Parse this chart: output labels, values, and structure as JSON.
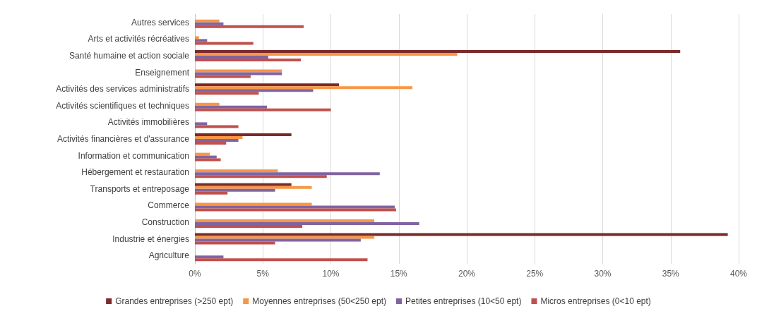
{
  "chart_data": {
    "type": "bar",
    "orientation": "horizontal",
    "categories": [
      "Autres services",
      "Arts et activités récréatives",
      "Santé humaine et action sociale",
      "Enseignement",
      "Activités des services administratifs",
      "Activités scientifiques et techniques",
      "Activités immobilières",
      "Activités financières et d'assurance",
      "Information et communication",
      "Hébergement et restauration",
      "Transports et entreposage",
      "Commerce",
      "Construction",
      "Industrie et énergies",
      "Agriculture"
    ],
    "series": [
      {
        "name": "Grandes entreprises (>250 ept)",
        "color": "#7b2a2a",
        "values": [
          null,
          null,
          35.7,
          null,
          10.6,
          null,
          null,
          7.1,
          null,
          null,
          7.1,
          null,
          null,
          39.2,
          null
        ]
      },
      {
        "name": "Moyennes entreprises (50<250 ept)",
        "color": "#f79646",
        "values": [
          1.8,
          0.3,
          19.3,
          6.4,
          16.0,
          1.8,
          null,
          3.5,
          1.1,
          6.1,
          8.6,
          8.6,
          13.2,
          13.2,
          null
        ]
      },
      {
        "name": "Petites entreprises (10<50 ept)",
        "color": "#8064a2",
        "values": [
          2.1,
          0.9,
          5.4,
          6.4,
          8.7,
          5.3,
          0.9,
          3.2,
          1.6,
          13.6,
          5.9,
          14.7,
          16.5,
          12.2,
          2.1
        ]
      },
      {
        "name": "Micros entreprises (0<10 ept)",
        "color": "#c0504d",
        "values": [
          8.0,
          4.3,
          7.8,
          4.1,
          4.7,
          10.0,
          3.2,
          2.3,
          1.9,
          9.7,
          2.4,
          14.8,
          7.9,
          5.9,
          12.7
        ]
      }
    ],
    "xlim": [
      0,
      40
    ],
    "xticks": [
      {
        "value": 0,
        "label": "0%"
      },
      {
        "value": 5,
        "label": "5%"
      },
      {
        "value": 10,
        "label": "10%"
      },
      {
        "value": 15,
        "label": "15%"
      },
      {
        "value": 20,
        "label": "20%"
      },
      {
        "value": 25,
        "label": "25%"
      },
      {
        "value": 30,
        "label": "30%"
      },
      {
        "value": 35,
        "label": "35%"
      },
      {
        "value": 40,
        "label": "40%"
      }
    ],
    "grid": "x",
    "legend": "bottom"
  }
}
